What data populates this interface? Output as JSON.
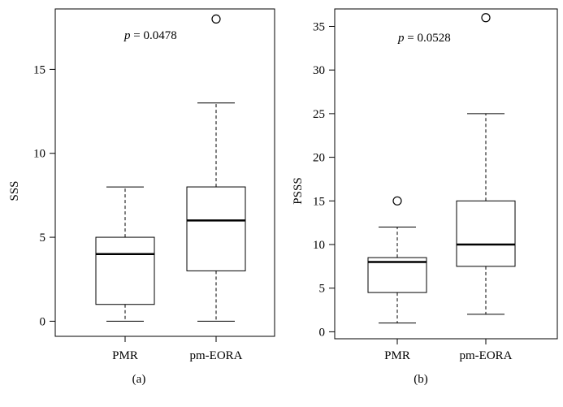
{
  "chart_data": [
    {
      "type": "box",
      "panel_label": "(a)",
      "ylabel": "SSS",
      "ylim": [
        -0.9,
        18.6
      ],
      "yticks": [
        0,
        5,
        10,
        15
      ],
      "annotation": {
        "p_symbol": "p",
        "p_text": " = 0.0478"
      },
      "categories": [
        "PMR",
        "pm-EORA"
      ],
      "boxes": [
        {
          "name": "PMR",
          "min": 0,
          "q1": 1,
          "median": 4,
          "q3": 5,
          "max": 8,
          "outliers": []
        },
        {
          "name": "pm-EORA",
          "min": 0,
          "q1": 3,
          "median": 6,
          "q3": 8,
          "max": 13,
          "outliers": [
            18
          ]
        }
      ]
    },
    {
      "type": "box",
      "panel_label": "(b)",
      "ylabel": "PSSS",
      "ylim": [
        -0.8,
        37
      ],
      "yticks": [
        0,
        5,
        10,
        15,
        20,
        25,
        30,
        35
      ],
      "annotation": {
        "p_symbol": "p",
        "p_text": " = 0.0528"
      },
      "categories": [
        "PMR",
        "pm-EORA"
      ],
      "boxes": [
        {
          "name": "PMR",
          "min": 1,
          "q1": 4.5,
          "median": 8,
          "q3": 8.5,
          "max": 12,
          "outliers": [
            15
          ]
        },
        {
          "name": "pm-EORA",
          "min": 2,
          "q1": 7.5,
          "median": 10,
          "q3": 15,
          "max": 25,
          "outliers": [
            36
          ]
        }
      ]
    }
  ]
}
